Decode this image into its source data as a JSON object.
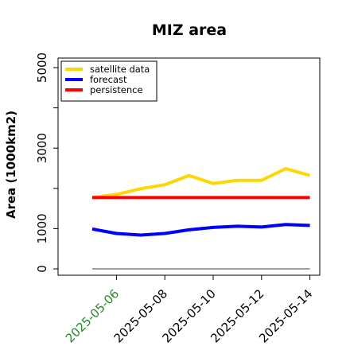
{
  "chart_data": {
    "type": "line",
    "title": "MIZ area",
    "xlabel": "",
    "ylabel": "Area (1000km2)",
    "x": [
      "2025-05-05",
      "2025-05-06",
      "2025-05-07",
      "2025-05-08",
      "2025-05-09",
      "2025-05-10",
      "2025-05-11",
      "2025-05-12",
      "2025-05-13",
      "2025-05-14"
    ],
    "x_tick_labels": [
      "2025-05-06",
      "2025-05-08",
      "2025-05-10",
      "2025-05-12",
      "2025-05-14"
    ],
    "x_tick_colors": [
      "#228b22",
      "#000000",
      "#000000",
      "#000000",
      "#000000"
    ],
    "ylim": [
      -100,
      5300
    ],
    "y_ticks": [
      0,
      1000,
      2000,
      3000,
      4000,
      5000
    ],
    "y_tick_labels": [
      "0",
      "1000",
      "",
      "3000",
      "",
      "5000"
    ],
    "grid": false,
    "legend_position": "top-left",
    "baseline": {
      "value": 0,
      "color": "#808080"
    },
    "series": [
      {
        "name": "satellite data",
        "color": "#ffd700",
        "values": [
          1770,
          1850,
          1990,
          2090,
          2320,
          2120,
          2200,
          2200,
          2490,
          2320
        ]
      },
      {
        "name": "forecast",
        "color": "#0000ff",
        "values": [
          990,
          880,
          840,
          880,
          970,
          1030,
          1060,
          1040,
          1100,
          1080
        ]
      },
      {
        "name": "persistence",
        "color": "#ff0000",
        "values": [
          1770,
          1770,
          1770,
          1770,
          1770,
          1770,
          1770,
          1770,
          1770,
          1770
        ]
      }
    ]
  }
}
